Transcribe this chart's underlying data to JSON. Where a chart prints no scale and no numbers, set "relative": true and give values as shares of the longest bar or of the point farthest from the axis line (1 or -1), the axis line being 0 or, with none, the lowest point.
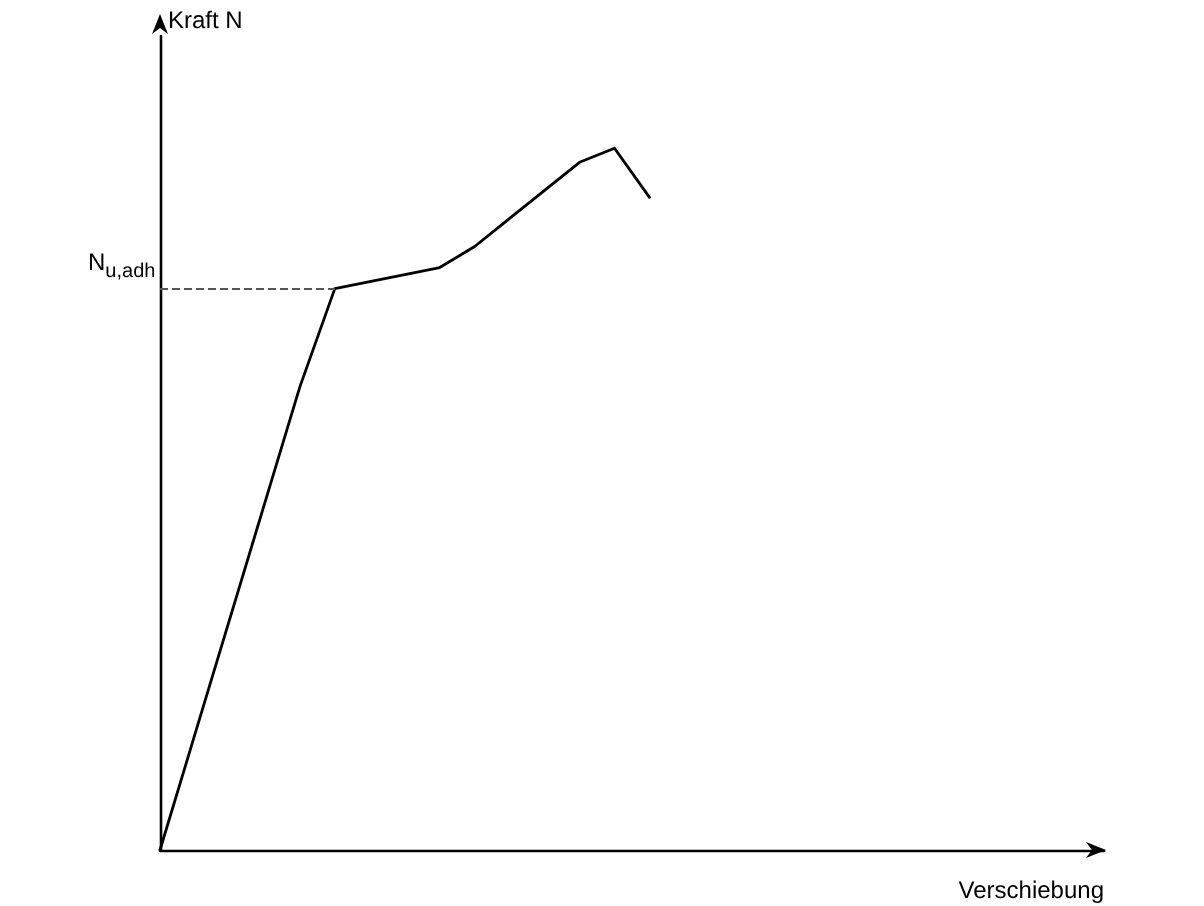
{
  "chart_data": {
    "type": "line",
    "relative": true,
    "xlabel": "Verschiebung",
    "ylabel": "Kraft N",
    "categories": [
      null,
      null,
      null,
      null,
      null,
      null,
      null,
      null,
      null,
      null,
      null,
      null,
      null,
      null,
      null,
      null,
      null,
      null,
      null,
      null,
      null,
      null,
      null,
      null,
      null,
      null,
      null,
      null
    ],
    "series": [
      {
        "color": "#000000",
        "values": [
          0,
          0.165,
          0.33,
          0.495,
          0.66,
          0.8,
          0.81,
          0.82,
          0.83,
          0.86,
          0.9,
          0.94,
          0.98,
          1,
          0.93,
          null,
          null,
          null,
          null,
          null,
          null,
          null,
          null,
          null,
          null,
          null,
          null,
          null
        ]
      }
    ],
    "ref_lines": [
      {
        "axis": "y",
        "value": 0.8,
        "label": "N$_{u,adh}$",
        "line_style": "dashed",
        "color": "#555555"
      }
    ],
    "grid": false,
    "marker": "none",
    "line_style": "solid"
  }
}
